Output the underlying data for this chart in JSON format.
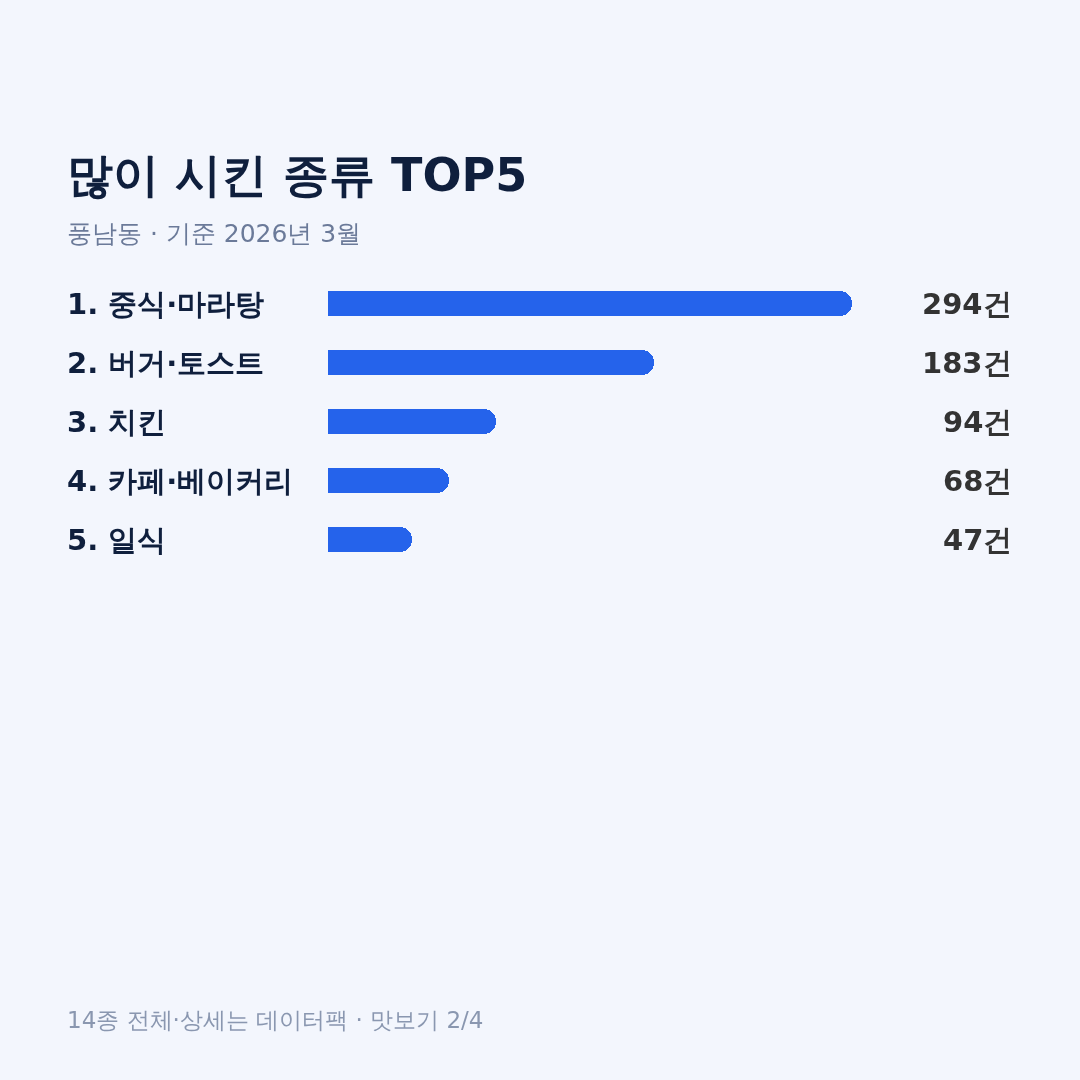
{
  "chart_data": {
    "type": "bar",
    "orientation": "horizontal",
    "title": "많이 시킨 종류 TOP5",
    "subtitle": "풍남동 · 기준 2026년 3월",
    "categories": [
      "1. 중식·마라탕",
      "2. 버거·토스트",
      "3. 치킨",
      "4. 카페·베이커리",
      "5. 일식"
    ],
    "values": [
      294,
      183,
      94,
      68,
      47
    ],
    "color": "#2563eb",
    "value_labels": [
      "294건",
      "183건",
      "94건",
      "68건",
      "47건"
    ],
    "annotations": [
      "14종 전체·상세는 데이터팩 · 맛보기 2/4"
    ]
  }
}
